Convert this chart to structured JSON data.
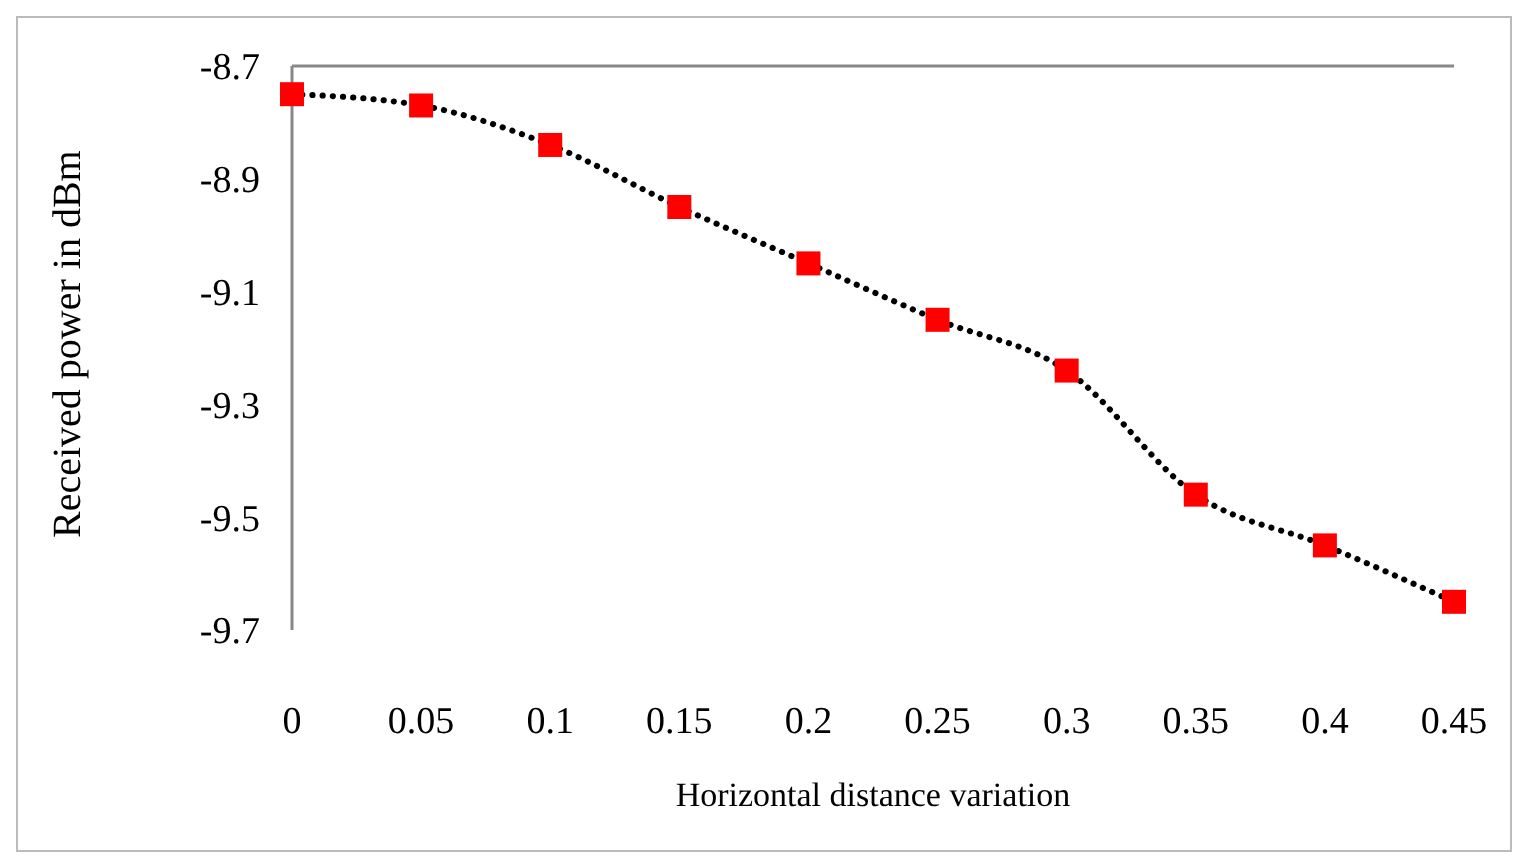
{
  "chart_data": {
    "type": "line",
    "xlabel": "Horizontal distance variation",
    "ylabel": "Received power in dBm",
    "categories": [
      "0",
      "0.05",
      "0.1",
      "0.15",
      "0.2",
      "0.25",
      "0.3",
      "0.35",
      "0.4",
      "0.45"
    ],
    "series": [
      {
        "color": "#000000",
        "line_style": "dotted",
        "marker": "none",
        "values": [
          -8.75,
          -8.77,
          -8.84,
          -8.95,
          -9.05,
          -9.15,
          -9.24,
          -9.46,
          -9.55,
          -9.65
        ]
      },
      {
        "type": "scatter",
        "color": "#ff0000",
        "marker": "square",
        "x": [
          "0",
          "0.05",
          "0.1",
          "0.15",
          "0.2",
          "0.25",
          "0.3",
          "0.35",
          "0.4",
          "0.45"
        ],
        "values": [
          -8.75,
          -8.77,
          -8.84,
          -8.95,
          -9.05,
          -9.15,
          -9.24,
          -9.46,
          -9.55,
          -9.65
        ]
      }
    ],
    "ylim": [
      -9.7,
      -8.7
    ],
    "yticks": [
      -9.7,
      -9.5,
      -9.3,
      -9.1,
      -8.9,
      -8.7
    ]
  }
}
